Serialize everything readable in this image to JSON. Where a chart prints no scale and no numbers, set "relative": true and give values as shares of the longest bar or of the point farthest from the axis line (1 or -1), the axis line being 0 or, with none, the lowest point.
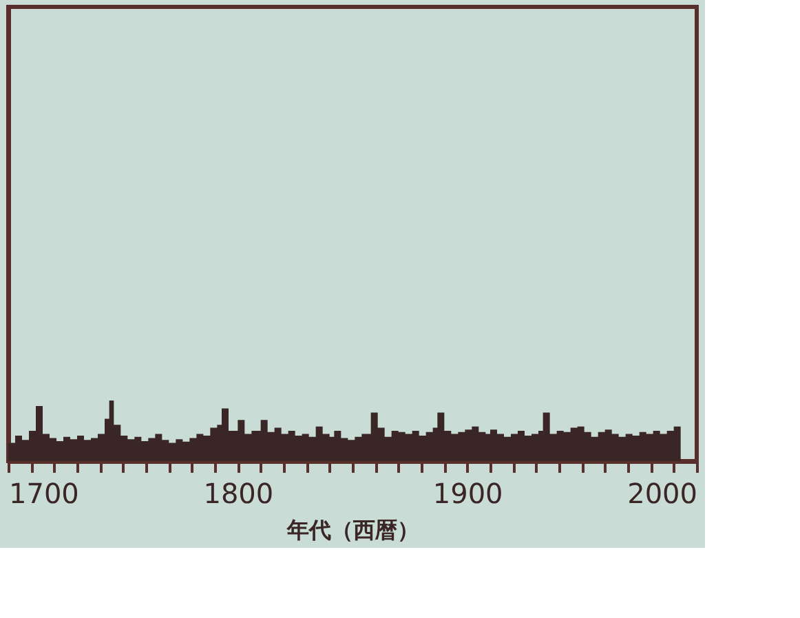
{
  "chart_data": {
    "type": "area",
    "xlabel": "年代（西暦）",
    "relative": true,
    "xlim": [
      1700,
      2000
    ],
    "xticks": [
      1700,
      {
        "value": 1710,
        "label": null
      },
      {
        "value": 1720,
        "label": null
      },
      {
        "value": 1730,
        "label": null
      },
      {
        "value": 1740,
        "label": null
      },
      {
        "value": 1750,
        "label": null
      },
      {
        "value": 1760,
        "label": null
      },
      {
        "value": 1770,
        "label": null
      },
      {
        "value": 1780,
        "label": null
      },
      {
        "value": 1790,
        "label": null
      },
      1800,
      {
        "value": 1810,
        "label": null
      },
      {
        "value": 1820,
        "label": null
      },
      {
        "value": 1830,
        "label": null
      },
      {
        "value": 1840,
        "label": null
      },
      {
        "value": 1850,
        "label": null
      },
      {
        "value": 1860,
        "label": null
      },
      {
        "value": 1870,
        "label": null
      },
      {
        "value": 1880,
        "label": null
      },
      {
        "value": 1890,
        "label": null
      },
      1900,
      {
        "value": 1910,
        "label": null
      },
      {
        "value": 1920,
        "label": null
      },
      {
        "value": 1930,
        "label": null
      },
      {
        "value": 1940,
        "label": null
      },
      {
        "value": 1950,
        "label": null
      },
      {
        "value": 1960,
        "label": null
      },
      {
        "value": 1970,
        "label": null
      },
      {
        "value": 1980,
        "label": null
      },
      {
        "value": 1990,
        "label": null
      },
      2000
    ],
    "x": [
      1700,
      1703,
      1706,
      1709,
      1712,
      1715,
      1718,
      1721,
      1724,
      1727,
      1730,
      1733,
      1736,
      1739,
      1742,
      1744,
      1746,
      1749,
      1752,
      1755,
      1758,
      1761,
      1764,
      1767,
      1770,
      1773,
      1776,
      1779,
      1782,
      1785,
      1788,
      1791,
      1793,
      1796,
      1800,
      1803,
      1806,
      1810,
      1813,
      1816,
      1819,
      1822,
      1825,
      1828,
      1831,
      1834,
      1837,
      1840,
      1842,
      1845,
      1848,
      1851,
      1854,
      1858,
      1861,
      1864,
      1867,
      1870,
      1873,
      1876,
      1879,
      1882,
      1885,
      1887,
      1890,
      1893,
      1896,
      1899,
      1902,
      1905,
      1908,
      1910,
      1913,
      1916,
      1919,
      1922,
      1925,
      1928,
      1931,
      1933,
      1936,
      1939,
      1942,
      1945,
      1948,
      1951,
      1954,
      1957,
      1960,
      1963,
      1966,
      1969,
      1972,
      1975,
      1978,
      1981,
      1984,
      1987,
      1990,
      1993
    ],
    "series": [
      {
        "color": "#3a2626",
        "values": [
          0.3,
          0.42,
          0.35,
          0.5,
          0.91,
          0.45,
          0.38,
          0.33,
          0.4,
          0.36,
          0.42,
          0.35,
          0.38,
          0.45,
          0.7,
          1.0,
          0.6,
          0.42,
          0.36,
          0.4,
          0.33,
          0.38,
          0.45,
          0.35,
          0.3,
          0.36,
          0.32,
          0.38,
          0.45,
          0.42,
          0.55,
          0.6,
          0.87,
          0.5,
          0.68,
          0.45,
          0.5,
          0.68,
          0.48,
          0.55,
          0.45,
          0.5,
          0.42,
          0.45,
          0.4,
          0.57,
          0.45,
          0.4,
          0.5,
          0.38,
          0.35,
          0.4,
          0.45,
          0.8,
          0.55,
          0.4,
          0.5,
          0.48,
          0.45,
          0.5,
          0.42,
          0.48,
          0.55,
          0.8,
          0.5,
          0.45,
          0.48,
          0.52,
          0.57,
          0.48,
          0.45,
          0.52,
          0.45,
          0.4,
          0.45,
          0.5,
          0.42,
          0.45,
          0.5,
          0.8,
          0.45,
          0.5,
          0.48,
          0.55,
          0.57,
          0.48,
          0.4,
          0.48,
          0.52,
          0.45,
          0.4,
          0.45,
          0.42,
          0.48,
          0.45,
          0.5,
          0.45,
          0.5,
          0.57,
          0.6
        ]
      }
    ]
  }
}
